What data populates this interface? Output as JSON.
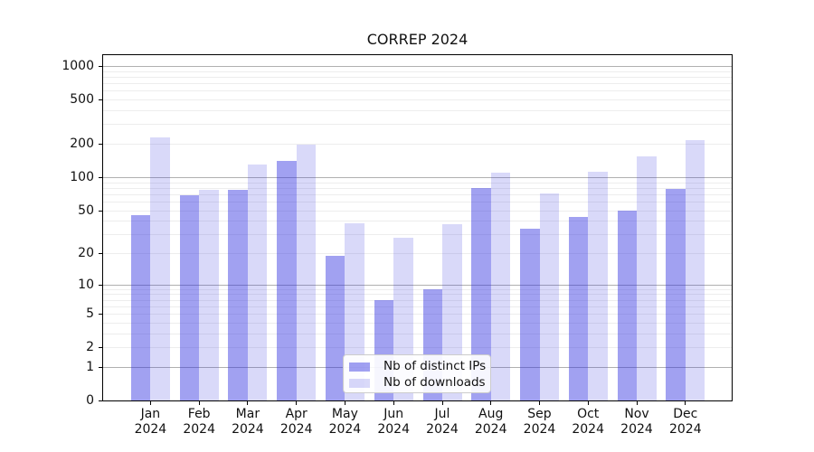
{
  "title": "CORREP 2024",
  "chart_data": {
    "type": "bar",
    "title": "CORREP 2024",
    "categories": [
      "Jan 2024",
      "Feb 2024",
      "Mar 2024",
      "Apr 2024",
      "May 2024",
      "Jun 2024",
      "Jul 2024",
      "Aug 2024",
      "Sep 2024",
      "Oct 2024",
      "Nov 2024",
      "Dec 2024"
    ],
    "series": [
      {
        "name": "Nb of distinct IPs",
        "color": "rgba(47,47,223,0.45)",
        "values": [
          45,
          68,
          77,
          141,
          19,
          7,
          9,
          80,
          34,
          43,
          50,
          78
        ]
      },
      {
        "name": "Nb of downloads",
        "color": "rgba(47,47,223,0.18)",
        "values": [
          230,
          76,
          130,
          197,
          38,
          28,
          37,
          109,
          71,
          112,
          153,
          215
        ]
      }
    ],
    "xlabel": "",
    "ylabel": "",
    "y_axis": {
      "scale": "log10(value+1)",
      "tick_labels": [
        "0",
        "1",
        "2",
        "5",
        "10",
        "20",
        "50",
        "100",
        "200",
        "500",
        "1000"
      ],
      "tick_values": [
        0,
        1,
        2,
        5,
        10,
        20,
        50,
        100,
        200,
        500,
        1000
      ],
      "major_gridlines": [
        1,
        10,
        100,
        1000
      ],
      "minor_gridlines": [
        2,
        3,
        4,
        5,
        6,
        7,
        8,
        9,
        20,
        30,
        40,
        50,
        60,
        70,
        80,
        90,
        200,
        300,
        400,
        500,
        600,
        700,
        800,
        900
      ],
      "ylim": [
        0,
        1300
      ],
      "grid": true
    },
    "legend": {
      "position": "lower center (inside plot)",
      "entries": [
        "Nb of distinct IPs",
        "Nb of downloads"
      ]
    }
  }
}
